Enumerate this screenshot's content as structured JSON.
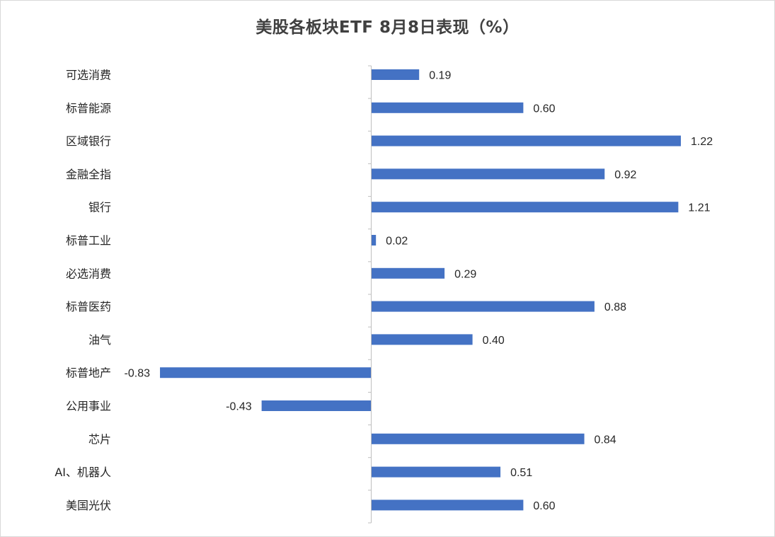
{
  "chart_data": {
    "type": "bar",
    "orientation": "horizontal",
    "title": "美股各板块ETF  8月8日表现（%）",
    "categories": [
      "可选消费",
      "标普能源",
      "区域银行",
      "金融全指",
      "银行",
      "标普工业",
      "必选消费",
      "标普医药",
      "油气",
      "标普地产",
      "公用事业",
      "芯片",
      "AI、机器人",
      "美国光伏"
    ],
    "values": [
      0.19,
      0.6,
      1.22,
      0.92,
      1.21,
      0.02,
      0.29,
      0.88,
      0.4,
      -0.83,
      -0.43,
      0.84,
      0.51,
      0.6
    ],
    "value_labels": [
      "0.19",
      "0.60",
      "1.22",
      "0.92",
      "1.21",
      "0.02",
      "0.29",
      "0.88",
      "0.40",
      "-0.83",
      "-0.43",
      "0.84",
      "0.51",
      "0.60"
    ],
    "xlabel": "",
    "ylabel": "",
    "grid": false,
    "legend": "none",
    "bar_color": "#4472C4"
  }
}
